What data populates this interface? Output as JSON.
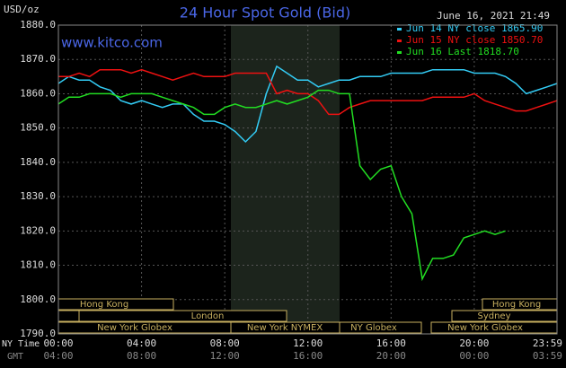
{
  "chart_data": {
    "type": "line",
    "title": "24 Hour Spot Gold (Bid)",
    "unit_label": "USD/oz",
    "timestamp": "June 16, 2021 21:49",
    "watermark": "www.kitco.com",
    "x_axis_label": "NY Time",
    "x2_axis_label": "GMT",
    "x": [
      0,
      0.5,
      1,
      1.5,
      2,
      2.5,
      3,
      3.5,
      4,
      4.5,
      5,
      5.5,
      6,
      6.5,
      7,
      7.5,
      8,
      8.5,
      9,
      9.5,
      10,
      10.5,
      11,
      11.5,
      12,
      12.5,
      13,
      13.5,
      14,
      14.5,
      15,
      15.5,
      16,
      16.5,
      17,
      17.5,
      18,
      18.5,
      19,
      19.5,
      20,
      20.5,
      21,
      21.5,
      22,
      22.5,
      23,
      23.5,
      23.98
    ],
    "series": [
      {
        "name": "Jun 14 NY close 1865.90",
        "color": "#33ccf5",
        "values": [
          1863,
          1865,
          1864,
          1864,
          1862,
          1861,
          1858,
          1857,
          1858,
          1857,
          1856,
          1857,
          1857,
          1854,
          1852,
          1852,
          1851,
          1849,
          1846,
          1849,
          1860,
          1868,
          1866,
          1864,
          1864,
          1862,
          1863,
          1864,
          1864,
          1865,
          1865,
          1865,
          1866,
          1866,
          1866,
          1866,
          1867,
          1867,
          1867,
          1867,
          1866,
          1866,
          1866,
          1865,
          1863,
          1860,
          1861,
          1862,
          1863
        ]
      },
      {
        "name": "Jun 15 NY close 1850.70",
        "color": "#ee1111",
        "values": [
          1865,
          1865,
          1866,
          1865,
          1867,
          1867,
          1867,
          1866,
          1867,
          1866,
          1865,
          1864,
          1865,
          1866,
          1865,
          1865,
          1865,
          1866,
          1866,
          1866,
          1866,
          1860,
          1861,
          1860,
          1860,
          1858,
          1854,
          1854,
          1856,
          1857,
          1858,
          1858,
          1858,
          1858,
          1858,
          1858,
          1859,
          1859,
          1859,
          1859,
          1860,
          1858,
          1857,
          1856,
          1855,
          1855,
          1856,
          1857,
          1858
        ]
      },
      {
        "name": "Jun 16 Last 1818.70",
        "color": "#22dd22",
        "values": [
          1857,
          1859,
          1859,
          1860,
          1860,
          1860,
          1859,
          1860,
          1860,
          1860,
          1859,
          1858,
          1857,
          1856,
          1854,
          1854,
          1856,
          1857,
          1856,
          1856,
          1857,
          1858,
          1857,
          1858,
          1859,
          1861,
          1861,
          1860,
          1860,
          1839,
          1835,
          1838,
          1839,
          1830,
          1825,
          1806,
          1812,
          1812,
          1813,
          1818,
          1819,
          1820,
          1819,
          1820,
          null,
          null,
          null,
          null,
          null
        ]
      }
    ],
    "xlim": [
      0,
      23.98
    ],
    "xticks": [
      {
        "value": 0,
        "label": "00:00"
      },
      {
        "value": 4,
        "label": "04:00"
      },
      {
        "value": 8,
        "label": "08:00"
      },
      {
        "value": 12,
        "label": "12:00"
      },
      {
        "value": 16,
        "label": "16:00"
      },
      {
        "value": 20,
        "label": "20:00"
      },
      {
        "value": 23.98,
        "label": "23:59"
      }
    ],
    "x2tick_labels": [
      "04:00",
      "08:00",
      "12:00",
      "16:00",
      "20:00",
      "00:00",
      "03:59"
    ],
    "ylim": [
      1790,
      1880
    ],
    "yticks": [
      {
        "value": 1790,
        "label": "1790.0"
      },
      {
        "value": 1800,
        "label": "1800.0"
      },
      {
        "value": 1810,
        "label": "1810.0"
      },
      {
        "value": 1820,
        "label": "1820.0"
      },
      {
        "value": 1830,
        "label": "1830.0"
      },
      {
        "value": 1840,
        "label": "1840.0"
      },
      {
        "value": 1850,
        "label": "1850.0"
      },
      {
        "value": 1860,
        "label": "1860.0"
      },
      {
        "value": 1870,
        "label": "1870.0"
      },
      {
        "value": 1880,
        "label": "1880.0"
      }
    ],
    "grid": true,
    "legend": "top-right",
    "sessions": [
      "Hong Kong",
      "London",
      "New York Globex",
      "New York NYMEX",
      "NY Globex",
      "Hong Kong",
      "Sydney",
      "New York Globex"
    ]
  }
}
